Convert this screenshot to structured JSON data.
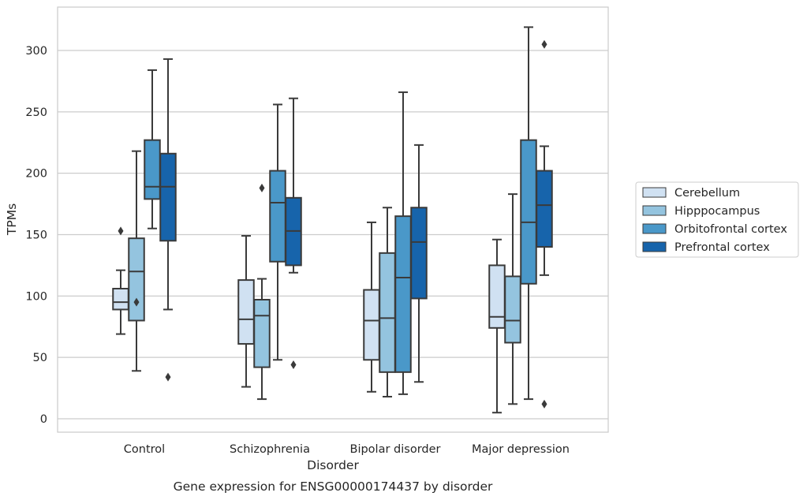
{
  "chart_data": {
    "type": "boxplot",
    "xlabel": "Disorder",
    "ylabel": "TPMs",
    "caption": "Gene expression for ENSG00000174437 by disorder",
    "ylim": [
      -10,
      335
    ],
    "yticks": [
      0,
      50,
      100,
      150,
      200,
      250,
      300
    ],
    "grid": "horizontal",
    "legend_position": "right",
    "categories": [
      "Control",
      "Schizophrenia",
      "Bipolar disorder",
      "Major depression"
    ],
    "series": [
      {
        "name": "Cerebellum",
        "color": "#d0e1f2",
        "boxes": [
          {
            "whisker_low": 69,
            "q1": 89,
            "median": 95,
            "q3": 106,
            "whisker_high": 121,
            "outliers": [
              153
            ]
          },
          {
            "whisker_low": 26,
            "q1": 61,
            "median": 81,
            "q3": 113,
            "whisker_high": 149,
            "outliers": []
          },
          {
            "whisker_low": 22,
            "q1": 48,
            "median": 80,
            "q3": 105,
            "whisker_high": 160,
            "outliers": []
          },
          {
            "whisker_low": 5,
            "q1": 74,
            "median": 83,
            "q3": 125,
            "whisker_high": 146,
            "outliers": []
          }
        ]
      },
      {
        "name": "Hipppocampus",
        "color": "#94c4df",
        "boxes": [
          {
            "whisker_low": 39,
            "q1": 80,
            "median": 120,
            "q3": 147,
            "whisker_high": 218,
            "outliers": [
              95
            ]
          },
          {
            "whisker_low": 16,
            "q1": 42,
            "median": 84,
            "q3": 97,
            "whisker_high": 114,
            "outliers": [
              188
            ]
          },
          {
            "whisker_low": 18,
            "q1": 38,
            "median": 82,
            "q3": 135,
            "whisker_high": 172,
            "outliers": []
          },
          {
            "whisker_low": 12,
            "q1": 62,
            "median": 80,
            "q3": 116,
            "whisker_high": 183,
            "outliers": []
          }
        ]
      },
      {
        "name": "Orbitofrontal cortex",
        "color": "#4a98c9",
        "boxes": [
          {
            "whisker_low": 155,
            "q1": 179,
            "median": 189,
            "q3": 227,
            "whisker_high": 284,
            "outliers": []
          },
          {
            "whisker_low": 48,
            "q1": 128,
            "median": 176,
            "q3": 202,
            "whisker_high": 256,
            "outliers": []
          },
          {
            "whisker_low": 20,
            "q1": 38,
            "median": 115,
            "q3": 165,
            "whisker_high": 266,
            "outliers": []
          },
          {
            "whisker_low": 16,
            "q1": 110,
            "median": 160,
            "q3": 227,
            "whisker_high": 319,
            "outliers": []
          }
        ]
      },
      {
        "name": "Prefrontal cortex",
        "color": "#1764ab",
        "boxes": [
          {
            "whisker_low": 89,
            "q1": 145,
            "median": 189,
            "q3": 216,
            "whisker_high": 293,
            "outliers": [
              34
            ]
          },
          {
            "whisker_low": 119,
            "q1": 125,
            "median": 153,
            "q3": 180,
            "whisker_high": 261,
            "outliers": [
              44
            ]
          },
          {
            "whisker_low": 30,
            "q1": 98,
            "median": 144,
            "q3": 172,
            "whisker_high": 223,
            "outliers": []
          },
          {
            "whisker_low": 117,
            "q1": 140,
            "median": 174,
            "q3": 202,
            "whisker_high": 222,
            "outliers": [
              12,
              305
            ]
          }
        ]
      }
    ]
  }
}
